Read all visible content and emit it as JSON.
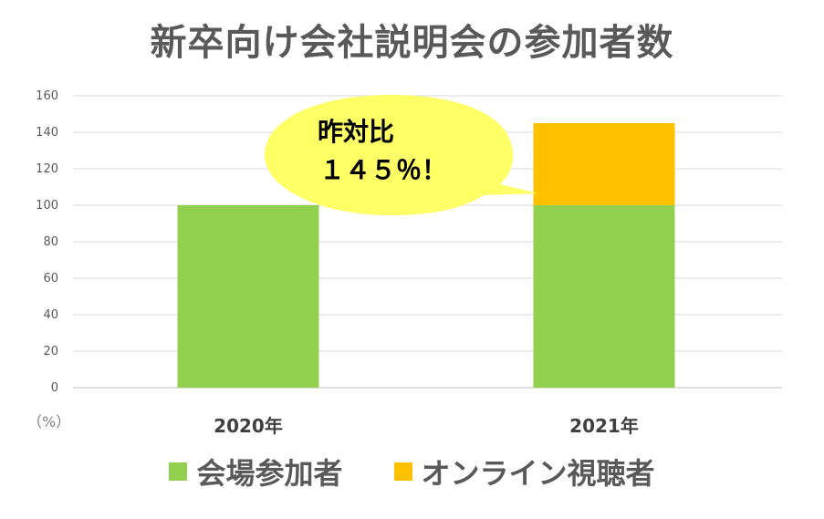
{
  "chart_data": {
    "type": "bar",
    "stacked": true,
    "title": "新卒向け会社説明会の参加者数",
    "unit_label": "（%）",
    "categories": [
      "2020年",
      "2021年"
    ],
    "series": [
      {
        "name": "会場参加者",
        "color": "#92D050",
        "values": [
          100,
          100
        ]
      },
      {
        "name": "オンライン視聴者",
        "color": "#FFC000",
        "values": [
          0,
          45
        ]
      }
    ],
    "ylim": [
      0,
      160
    ],
    "yticks": [
      "0",
      "20",
      "40",
      "60",
      "80",
      "100",
      "120",
      "140",
      "160"
    ],
    "grid": true,
    "legend_position": "bottom",
    "annotation": {
      "line1": "昨対比",
      "line2": "１４５％！",
      "shape": "speech-bubble",
      "color": "#FFFF66"
    }
  }
}
